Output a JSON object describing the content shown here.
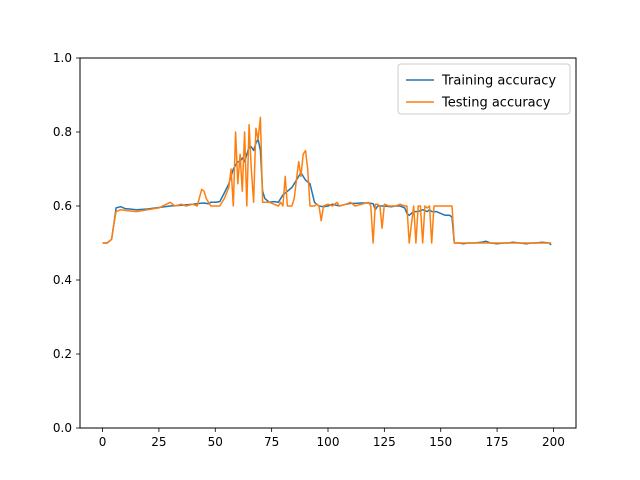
{
  "chart_data": {
    "type": "line",
    "title": "",
    "xlabel": "",
    "ylabel": "",
    "xlim": [
      -10,
      210
    ],
    "ylim": [
      0,
      1.0
    ],
    "xticks": [
      0,
      25,
      50,
      75,
      100,
      125,
      150,
      175,
      200
    ],
    "yticks": [
      0.0,
      0.2,
      0.4,
      0.6,
      0.8,
      1.0
    ],
    "ytick_labels": [
      "0.0",
      "0.2",
      "0.4",
      "0.6",
      "0.8",
      "1.0"
    ],
    "grid": false,
    "legend_position": "top-right",
    "series": [
      {
        "name": "Training accuracy",
        "color": "#1f77b4",
        "x": [
          0,
          2,
          4,
          5,
          6,
          8,
          10,
          15,
          20,
          25,
          30,
          35,
          40,
          43,
          45,
          47,
          48,
          50,
          52,
          54,
          56,
          58,
          60,
          61,
          62,
          63,
          64,
          65,
          66,
          67,
          68,
          69,
          70,
          71,
          72,
          74,
          76,
          78,
          80,
          82,
          84,
          85,
          86,
          87,
          88,
          89,
          90,
          92,
          94,
          95,
          96,
          98,
          100,
          102,
          105,
          108,
          110,
          112,
          115,
          118,
          120,
          121,
          122,
          124,
          125,
          128,
          130,
          132,
          134,
          135,
          136,
          137,
          138,
          140,
          142,
          144,
          145,
          146,
          148,
          150,
          152,
          154,
          155,
          156,
          158,
          160,
          162,
          165,
          168,
          170,
          172,
          175,
          178,
          180,
          182,
          185,
          188,
          190,
          192,
          195,
          198,
          199
        ],
        "y": [
          0.5,
          0.5,
          0.51,
          0.55,
          0.595,
          0.598,
          0.593,
          0.59,
          0.592,
          0.596,
          0.6,
          0.602,
          0.605,
          0.607,
          0.608,
          0.606,
          0.61,
          0.61,
          0.612,
          0.635,
          0.66,
          0.7,
          0.72,
          0.72,
          0.73,
          0.72,
          0.74,
          0.76,
          0.76,
          0.75,
          0.77,
          0.78,
          0.75,
          0.64,
          0.62,
          0.61,
          0.612,
          0.61,
          0.63,
          0.64,
          0.65,
          0.66,
          0.67,
          0.68,
          0.69,
          0.68,
          0.67,
          0.66,
          0.61,
          0.605,
          0.6,
          0.598,
          0.6,
          0.605,
          0.6,
          0.605,
          0.607,
          0.607,
          0.608,
          0.608,
          0.606,
          0.59,
          0.6,
          0.6,
          0.6,
          0.598,
          0.6,
          0.6,
          0.595,
          0.58,
          0.575,
          0.58,
          0.585,
          0.585,
          0.59,
          0.585,
          0.59,
          0.585,
          0.585,
          0.58,
          0.575,
          0.575,
          0.57,
          0.5,
          0.5,
          0.498,
          0.5,
          0.5,
          0.502,
          0.505,
          0.5,
          0.498,
          0.5,
          0.5,
          0.502,
          0.5,
          0.498,
          0.5,
          0.5,
          0.502,
          0.5,
          0.495
        ]
      },
      {
        "name": "Testing accuracy",
        "color": "#ff7f0e",
        "x": [
          0,
          2,
          4,
          5,
          6,
          8,
          10,
          15,
          20,
          25,
          30,
          32,
          35,
          37,
          40,
          42,
          44,
          45,
          46,
          48,
          50,
          52,
          54,
          56,
          57,
          58,
          59,
          60,
          61,
          62,
          63,
          64,
          65,
          66,
          67,
          68,
          69,
          70,
          71,
          72,
          74,
          76,
          78,
          79,
          80,
          81,
          82,
          84,
          85,
          86,
          87,
          88,
          89,
          90,
          91,
          92,
          94,
          95,
          96,
          97,
          98,
          100,
          102,
          104,
          105,
          108,
          110,
          112,
          115,
          118,
          119,
          120,
          121,
          122,
          123,
          124,
          125,
          127,
          130,
          132,
          134,
          135,
          136,
          137,
          138,
          139,
          140,
          141,
          142,
          143,
          144,
          145,
          146,
          147,
          148,
          150,
          152,
          154,
          155,
          156,
          158,
          160,
          162,
          165,
          168,
          170,
          172,
          175,
          178,
          180,
          182,
          185,
          188,
          190,
          192,
          195,
          198,
          199
        ],
        "y": [
          0.5,
          0.5,
          0.51,
          0.55,
          0.585,
          0.59,
          0.588,
          0.585,
          0.59,
          0.595,
          0.61,
          0.6,
          0.605,
          0.6,
          0.605,
          0.6,
          0.645,
          0.64,
          0.62,
          0.6,
          0.6,
          0.6,
          0.62,
          0.65,
          0.7,
          0.6,
          0.8,
          0.66,
          0.74,
          0.64,
          0.8,
          0.6,
          0.82,
          0.7,
          0.61,
          0.81,
          0.78,
          0.84,
          0.61,
          0.61,
          0.61,
          0.605,
          0.6,
          0.61,
          0.6,
          0.68,
          0.6,
          0.6,
          0.62,
          0.67,
          0.72,
          0.68,
          0.74,
          0.75,
          0.7,
          0.6,
          0.6,
          0.605,
          0.6,
          0.56,
          0.6,
          0.605,
          0.6,
          0.61,
          0.6,
          0.605,
          0.61,
          0.6,
          0.605,
          0.61,
          0.6,
          0.5,
          0.605,
          0.605,
          0.6,
          0.54,
          0.605,
          0.6,
          0.6,
          0.605,
          0.6,
          0.6,
          0.5,
          0.55,
          0.6,
          0.5,
          0.6,
          0.6,
          0.5,
          0.6,
          0.595,
          0.6,
          0.5,
          0.6,
          0.6,
          0.6,
          0.6,
          0.6,
          0.6,
          0.5,
          0.5,
          0.5,
          0.5,
          0.5,
          0.5,
          0.5,
          0.5,
          0.5,
          0.5,
          0.5,
          0.5,
          0.5,
          0.5,
          0.5,
          0.5,
          0.5,
          0.5,
          0.5
        ]
      }
    ]
  }
}
